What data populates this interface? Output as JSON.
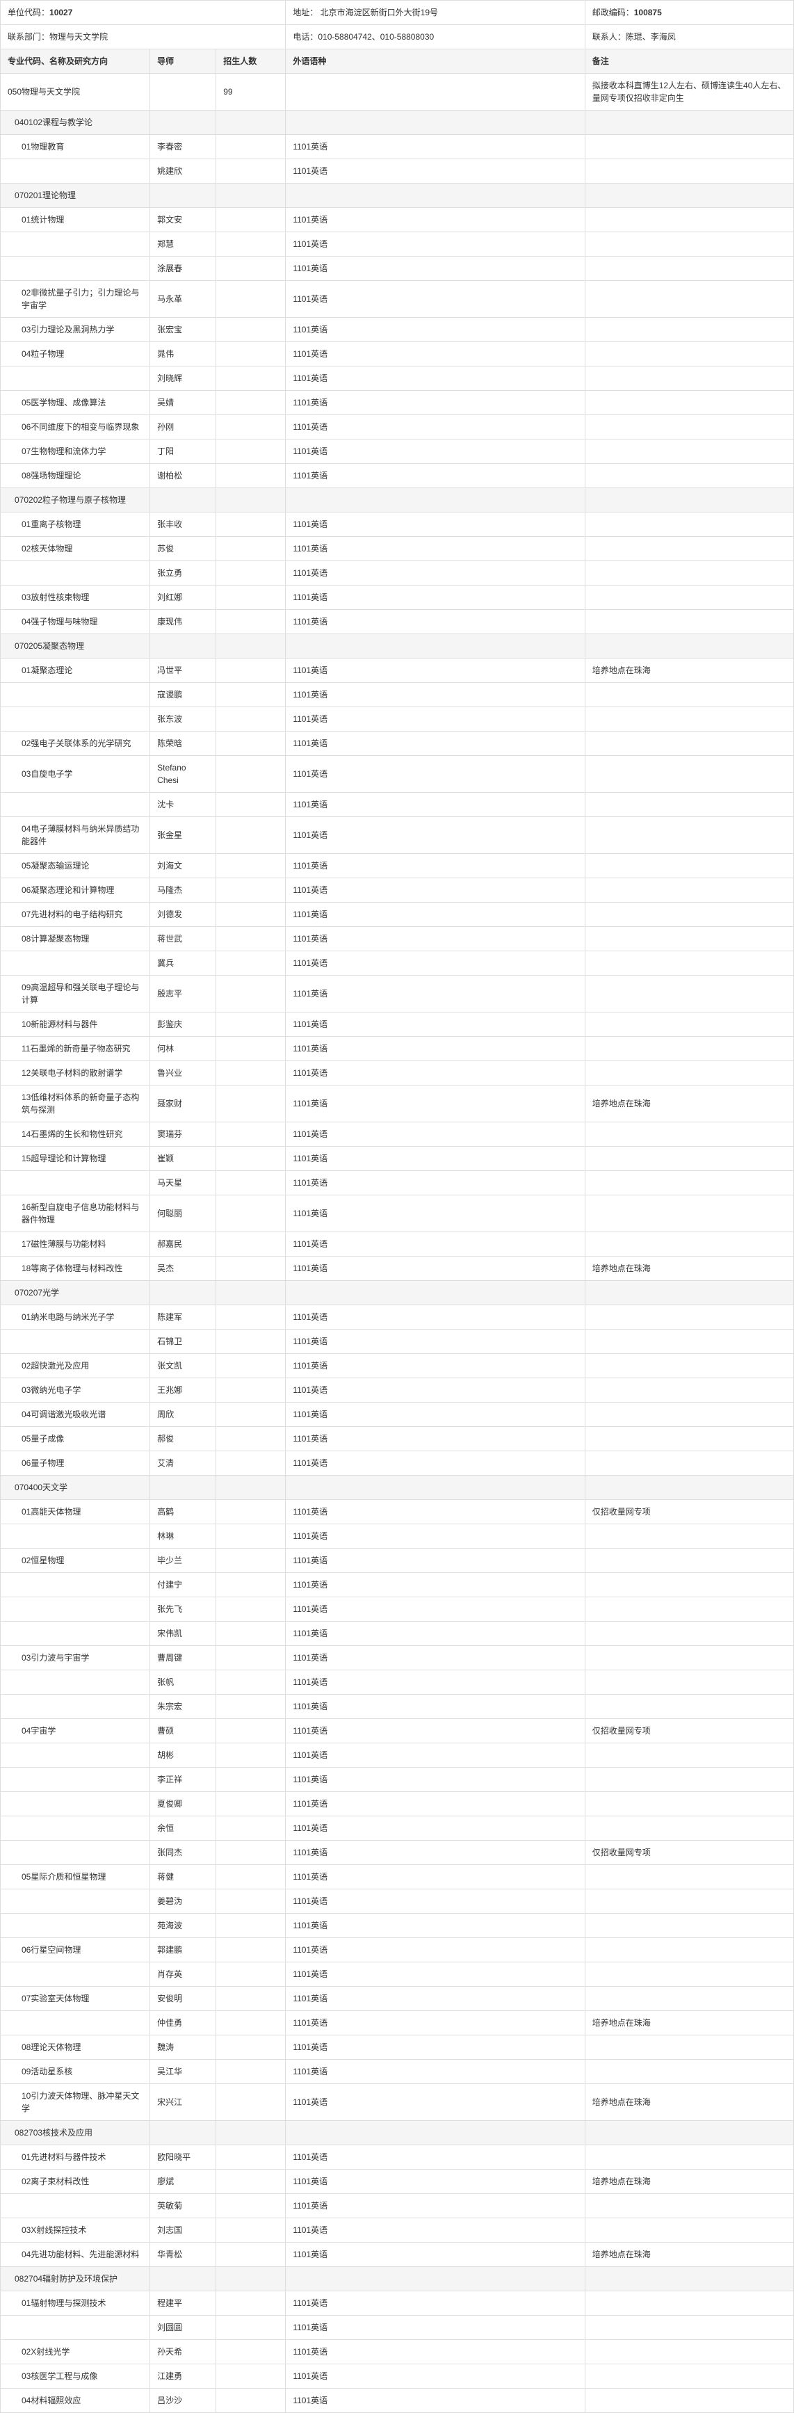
{
  "topHeader": {
    "c1_label": "单位代码：",
    "c1_val": "10027",
    "c2_label": "地址：",
    "c2_val": " 北京市海淀区新街口外大街19号",
    "c3_label": "邮政编码：",
    "c3_val": "100875"
  },
  "topHeader2": {
    "c1_label": "联系部门：",
    "c1_val": "物理与天文学院",
    "c2_label": "电话：",
    "c2_val": "010-58804742、010-58808030",
    "c3_label": "联系人：",
    "c3_val": "陈琨、李海凤"
  },
  "columns": {
    "a": "专业代码、名称及研究方向",
    "b": "导师",
    "c": "招生人数",
    "d": "外语语种",
    "e": "备注"
  },
  "lang": "1101英语",
  "rows": [
    {
      "type": "data",
      "a": "050物理与天文学院",
      "b": "",
      "c": "99",
      "d": "",
      "e": "拟接收本科直博生12人左右、硕博连读生40人左右、量网专项仅招收非定向生"
    },
    {
      "type": "section",
      "a": "040102课程与教学论",
      "indent": 1
    },
    {
      "type": "data",
      "a": "01物理教育",
      "b": "李春密",
      "c": "",
      "d": "1101英语",
      "e": "",
      "indent": 2
    },
    {
      "type": "data",
      "a": "",
      "b": "姚建欣",
      "c": "",
      "d": "1101英语",
      "e": ""
    },
    {
      "type": "section",
      "a": "070201理论物理",
      "indent": 1
    },
    {
      "type": "data",
      "a": "01统计物理",
      "b": "郭文安",
      "c": "",
      "d": "1101英语",
      "e": "",
      "indent": 2
    },
    {
      "type": "data",
      "a": "",
      "b": "郑慧",
      "c": "",
      "d": "1101英语",
      "e": ""
    },
    {
      "type": "data",
      "a": "",
      "b": "涂展春",
      "c": "",
      "d": "1101英语",
      "e": ""
    },
    {
      "type": "data",
      "a": "02非微扰量子引力；引力理论与宇宙学",
      "b": "马永革",
      "c": "",
      "d": "1101英语",
      "e": "",
      "indent": 2
    },
    {
      "type": "data",
      "a": "03引力理论及黑洞热力学",
      "b": "张宏宝",
      "c": "",
      "d": "1101英语",
      "e": "",
      "indent": 2
    },
    {
      "type": "data",
      "a": "04粒子物理",
      "b": "晁伟",
      "c": "",
      "d": "1101英语",
      "e": "",
      "indent": 2
    },
    {
      "type": "data",
      "a": "",
      "b": "刘晓辉",
      "c": "",
      "d": "1101英语",
      "e": ""
    },
    {
      "type": "data",
      "a": "05医学物理、成像算法",
      "b": "吴婧",
      "c": "",
      "d": "1101英语",
      "e": "",
      "indent": 2
    },
    {
      "type": "data",
      "a": "06不同维度下的相变与临界现象",
      "b": "孙刚",
      "c": "",
      "d": "1101英语",
      "e": "",
      "indent": 2
    },
    {
      "type": "data",
      "a": "07生物物理和流体力学",
      "b": "丁阳",
      "c": "",
      "d": "1101英语",
      "e": "",
      "indent": 2
    },
    {
      "type": "data",
      "a": "08强场物理理论",
      "b": "谢柏松",
      "c": "",
      "d": "1101英语",
      "e": "",
      "indent": 2
    },
    {
      "type": "section",
      "a": "070202粒子物理与原子核物理",
      "indent": 1
    },
    {
      "type": "data",
      "a": "01重离子核物理",
      "b": "张丰收",
      "c": "",
      "d": "1101英语",
      "e": "",
      "indent": 2
    },
    {
      "type": "data",
      "a": "02核天体物理",
      "b": "苏俊",
      "c": "",
      "d": "1101英语",
      "e": "",
      "indent": 2
    },
    {
      "type": "data",
      "a": "",
      "b": "张立勇",
      "c": "",
      "d": "1101英语",
      "e": ""
    },
    {
      "type": "data",
      "a": "03放射性核束物理",
      "b": "刘红娜",
      "c": "",
      "d": "1101英语",
      "e": "",
      "indent": 2
    },
    {
      "type": "data",
      "a": "04强子物理与味物理",
      "b": "康现伟",
      "c": "",
      "d": "1101英语",
      "e": "",
      "indent": 2
    },
    {
      "type": "section",
      "a": "070205凝聚态物理",
      "indent": 1
    },
    {
      "type": "data",
      "a": "01凝聚态理论",
      "b": "冯世平",
      "c": "",
      "d": "1101英语",
      "e": "培养地点在珠海",
      "indent": 2
    },
    {
      "type": "data",
      "a": "",
      "b": "寇谡鹏",
      "c": "",
      "d": "1101英语",
      "e": ""
    },
    {
      "type": "data",
      "a": "",
      "b": "张东波",
      "c": "",
      "d": "1101英语",
      "e": ""
    },
    {
      "type": "data",
      "a": "02强电子关联体系的光学研究",
      "b": "陈荣晗",
      "c": "",
      "d": "1101英语",
      "e": "",
      "indent": 2
    },
    {
      "type": "data",
      "a": "03自旋电子学",
      "b": "Stefano Chesi",
      "c": "",
      "d": "1101英语",
      "e": "",
      "indent": 2
    },
    {
      "type": "data",
      "a": "",
      "b": "沈卡",
      "c": "",
      "d": "1101英语",
      "e": ""
    },
    {
      "type": "data",
      "a": "04电子薄膜材料与纳米异质结功能器件",
      "b": "张金星",
      "c": "",
      "d": "1101英语",
      "e": "",
      "indent": 2
    },
    {
      "type": "data",
      "a": "05凝聚态输运理论",
      "b": "刘海文",
      "c": "",
      "d": "1101英语",
      "e": "",
      "indent": 2
    },
    {
      "type": "data",
      "a": "06凝聚态理论和计算物理",
      "b": "马隆杰",
      "c": "",
      "d": "1101英语",
      "e": "",
      "indent": 2
    },
    {
      "type": "data",
      "a": "07先进材料的电子结构研究",
      "b": "刘德发",
      "c": "",
      "d": "1101英语",
      "e": "",
      "indent": 2
    },
    {
      "type": "data",
      "a": "08计算凝聚态物理",
      "b": "蒋世武",
      "c": "",
      "d": "1101英语",
      "e": "",
      "indent": 2
    },
    {
      "type": "data",
      "a": "",
      "b": "冀兵",
      "c": "",
      "d": "1101英语",
      "e": ""
    },
    {
      "type": "data",
      "a": "09高温超导和强关联电子理论与计算",
      "b": "殷志平",
      "c": "",
      "d": "1101英语",
      "e": "",
      "indent": 2
    },
    {
      "type": "data",
      "a": "10新能源材料与器件",
      "b": "彭鉴庆",
      "c": "",
      "d": "1101英语",
      "e": "",
      "indent": 2
    },
    {
      "type": "data",
      "a": "11石墨烯的新奇量子物态研究",
      "b": "何林",
      "c": "",
      "d": "1101英语",
      "e": "",
      "indent": 2
    },
    {
      "type": "data",
      "a": "12关联电子材料的散射谱学",
      "b": "鲁兴业",
      "c": "",
      "d": "1101英语",
      "e": "",
      "indent": 2
    },
    {
      "type": "data",
      "a": "13低维材料体系的新奇量子态构筑与探测",
      "b": "聂家财",
      "c": "",
      "d": "1101英语",
      "e": "培养地点在珠海",
      "indent": 2
    },
    {
      "type": "data",
      "a": "14石墨烯的生长和物性研究",
      "b": "窦瑞芬",
      "c": "",
      "d": "1101英语",
      "e": "",
      "indent": 2
    },
    {
      "type": "data",
      "a": "15超导理论和计算物理",
      "b": "崔颖",
      "c": "",
      "d": "1101英语",
      "e": "",
      "indent": 2
    },
    {
      "type": "data",
      "a": "",
      "b": "马天星",
      "c": "",
      "d": "1101英语",
      "e": ""
    },
    {
      "type": "data",
      "a": "16新型自旋电子信息功能材料与器件物理",
      "b": "何聪丽",
      "c": "",
      "d": "1101英语",
      "e": "",
      "indent": 2
    },
    {
      "type": "data",
      "a": "17磁性薄膜与功能材料",
      "b": "郝嘉民",
      "c": "",
      "d": "1101英语",
      "e": "",
      "indent": 2
    },
    {
      "type": "data",
      "a": "18等离子体物理与材料改性",
      "b": "吴杰",
      "c": "",
      "d": "1101英语",
      "e": "培养地点在珠海",
      "indent": 2
    },
    {
      "type": "section",
      "a": "070207光学",
      "indent": 1
    },
    {
      "type": "data",
      "a": "01纳米电路与纳米光子学",
      "b": "陈建军",
      "c": "",
      "d": "1101英语",
      "e": "",
      "indent": 2
    },
    {
      "type": "data",
      "a": "",
      "b": "石锦卫",
      "c": "",
      "d": "1101英语",
      "e": ""
    },
    {
      "type": "data",
      "a": "02超快激光及应用",
      "b": "张文凯",
      "c": "",
      "d": "1101英语",
      "e": "",
      "indent": 2
    },
    {
      "type": "data",
      "a": "03微纳光电子学",
      "b": "王兆娜",
      "c": "",
      "d": "1101英语",
      "e": "",
      "indent": 2
    },
    {
      "type": "data",
      "a": "04可调谐激光吸收光谱",
      "b": "周欣",
      "c": "",
      "d": "1101英语",
      "e": "",
      "indent": 2
    },
    {
      "type": "data",
      "a": "05量子成像",
      "b": "郝俊",
      "c": "",
      "d": "1101英语",
      "e": "",
      "indent": 2
    },
    {
      "type": "data",
      "a": "06量子物理",
      "b": "艾清",
      "c": "",
      "d": "1101英语",
      "e": "",
      "indent": 2
    },
    {
      "type": "section",
      "a": "070400天文学",
      "indent": 1
    },
    {
      "type": "data",
      "a": "01高能天体物理",
      "b": "高鹤",
      "c": "",
      "d": "1101英语",
      "e": "仅招收量网专项",
      "indent": 2
    },
    {
      "type": "data",
      "a": "",
      "b": "林琳",
      "c": "",
      "d": "1101英语",
      "e": ""
    },
    {
      "type": "data",
      "a": "02恒星物理",
      "b": "毕少兰",
      "c": "",
      "d": "1101英语",
      "e": "",
      "indent": 2
    },
    {
      "type": "data",
      "a": "",
      "b": "付建宁",
      "c": "",
      "d": "1101英语",
      "e": ""
    },
    {
      "type": "data",
      "a": "",
      "b": "张先飞",
      "c": "",
      "d": "1101英语",
      "e": ""
    },
    {
      "type": "data",
      "a": "",
      "b": "宋伟凯",
      "c": "",
      "d": "1101英语",
      "e": ""
    },
    {
      "type": "data",
      "a": "03引力波与宇宙学",
      "b": "曹周键",
      "c": "",
      "d": "1101英语",
      "e": "",
      "indent": 2
    },
    {
      "type": "data",
      "a": "",
      "b": "张帆",
      "c": "",
      "d": "1101英语",
      "e": ""
    },
    {
      "type": "data",
      "a": "",
      "b": "朱宗宏",
      "c": "",
      "d": "1101英语",
      "e": ""
    },
    {
      "type": "data",
      "a": "04宇宙学",
      "b": "曹硕",
      "c": "",
      "d": "1101英语",
      "e": "仅招收量网专项",
      "indent": 2
    },
    {
      "type": "data",
      "a": "",
      "b": "胡彬",
      "c": "",
      "d": "1101英语",
      "e": ""
    },
    {
      "type": "data",
      "a": "",
      "b": "李正祥",
      "c": "",
      "d": "1101英语",
      "e": ""
    },
    {
      "type": "data",
      "a": "",
      "b": "夏俊卿",
      "c": "",
      "d": "1101英语",
      "e": ""
    },
    {
      "type": "data",
      "a": "",
      "b": "余恒",
      "c": "",
      "d": "1101英语",
      "e": ""
    },
    {
      "type": "data",
      "a": "",
      "b": "张同杰",
      "c": "",
      "d": "1101英语",
      "e": "仅招收量网专项"
    },
    {
      "type": "data",
      "a": "05星际介质和恒星物理",
      "b": "蒋健",
      "c": "",
      "d": "1101英语",
      "e": "",
      "indent": 2
    },
    {
      "type": "data",
      "a": "",
      "b": "姜碧沩",
      "c": "",
      "d": "1101英语",
      "e": ""
    },
    {
      "type": "data",
      "a": "",
      "b": "苑海波",
      "c": "",
      "d": "1101英语",
      "e": ""
    },
    {
      "type": "data",
      "a": "06行星空间物理",
      "b": "郭建鹏",
      "c": "",
      "d": "1101英语",
      "e": "",
      "indent": 2
    },
    {
      "type": "data",
      "a": "",
      "b": "肖存英",
      "c": "",
      "d": "1101英语",
      "e": ""
    },
    {
      "type": "data",
      "a": "07实验室天体物理",
      "b": "安俊明",
      "c": "",
      "d": "1101英语",
      "e": "",
      "indent": 2
    },
    {
      "type": "data",
      "a": "",
      "b": "仲佳勇",
      "c": "",
      "d": "1101英语",
      "e": "培养地点在珠海"
    },
    {
      "type": "data",
      "a": "08理论天体物理",
      "b": "魏涛",
      "c": "",
      "d": "1101英语",
      "e": "",
      "indent": 2
    },
    {
      "type": "data",
      "a": "09活动星系核",
      "b": "吴江华",
      "c": "",
      "d": "1101英语",
      "e": "",
      "indent": 2
    },
    {
      "type": "data",
      "a": "10引力波天体物理、脉冲星天文学",
      "b": "宋兴江",
      "c": "",
      "d": "1101英语",
      "e": "培养地点在珠海",
      "indent": 2
    },
    {
      "type": "section",
      "a": "082703核技术及应用",
      "indent": 1
    },
    {
      "type": "data",
      "a": "01先进材料与器件技术",
      "b": "欧阳晓平",
      "c": "",
      "d": "1101英语",
      "e": "",
      "indent": 2
    },
    {
      "type": "data",
      "a": "02离子束材料改性",
      "b": "廖斌",
      "c": "",
      "d": "1101英语",
      "e": "培养地点在珠海",
      "indent": 2
    },
    {
      "type": "data",
      "a": "",
      "b": "英敏菊",
      "c": "",
      "d": "1101英语",
      "e": ""
    },
    {
      "type": "data",
      "a": "03X射线探控技术",
      "b": "刘志国",
      "c": "",
      "d": "1101英语",
      "e": "",
      "indent": 2
    },
    {
      "type": "data",
      "a": "04先进功能材料、先进能源材料",
      "b": "华青松",
      "c": "",
      "d": "1101英语",
      "e": "培养地点在珠海",
      "indent": 2
    },
    {
      "type": "section",
      "a": "082704辐射防护及环境保护",
      "indent": 1
    },
    {
      "type": "data",
      "a": "01辐射物理与探测技术",
      "b": "程建平",
      "c": "",
      "d": "1101英语",
      "e": "",
      "indent": 2
    },
    {
      "type": "data",
      "a": "",
      "b": "刘圆圆",
      "c": "",
      "d": "1101英语",
      "e": ""
    },
    {
      "type": "data",
      "a": "02X射线光学",
      "b": "孙天希",
      "c": "",
      "d": "1101英语",
      "e": "",
      "indent": 2
    },
    {
      "type": "data",
      "a": "03核医学工程与成像",
      "b": "江建勇",
      "c": "",
      "d": "1101英语",
      "e": "",
      "indent": 2
    },
    {
      "type": "data",
      "a": "04材料辐照效应",
      "b": "吕沙沙",
      "c": "",
      "d": "1101英语",
      "e": "",
      "indent": 2
    }
  ]
}
